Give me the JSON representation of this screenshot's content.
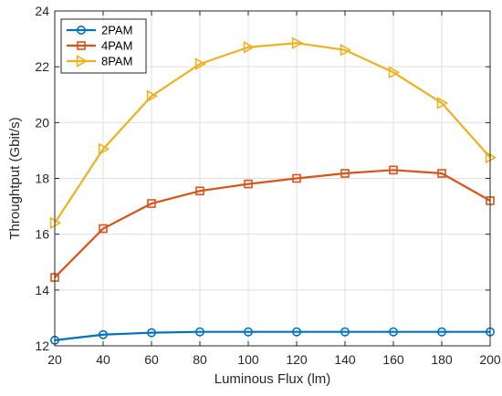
{
  "chart_data": {
    "type": "line",
    "title": "",
    "xlabel": "Luminous Flux (lm)",
    "ylabel": "Throughtput (Gbit/s)",
    "x": [
      20,
      40,
      60,
      80,
      100,
      120,
      140,
      160,
      180,
      200
    ],
    "xlim": [
      20,
      200
    ],
    "ylim": [
      12,
      24
    ],
    "xticks": [
      20,
      40,
      60,
      80,
      100,
      120,
      140,
      160,
      180,
      200
    ],
    "yticks": [
      12,
      14,
      16,
      18,
      20,
      22,
      24
    ],
    "grid": true,
    "legend_position": "top-left",
    "series": [
      {
        "name": "2PAM",
        "color": "#0072BD",
        "marker": "circle",
        "values": [
          12.2,
          12.4,
          12.47,
          12.5,
          12.5,
          12.5,
          12.5,
          12.5,
          12.5,
          12.5
        ]
      },
      {
        "name": "4PAM",
        "color": "#D95319",
        "marker": "square",
        "values": [
          14.45,
          16.2,
          17.1,
          17.55,
          17.8,
          18.0,
          18.18,
          18.3,
          18.18,
          17.2
        ]
      },
      {
        "name": "8PAM",
        "color": "#EDB120",
        "marker": "triangle-right",
        "values": [
          16.4,
          19.05,
          20.95,
          22.1,
          22.7,
          22.85,
          22.6,
          21.8,
          20.7,
          18.75
        ]
      }
    ]
  }
}
